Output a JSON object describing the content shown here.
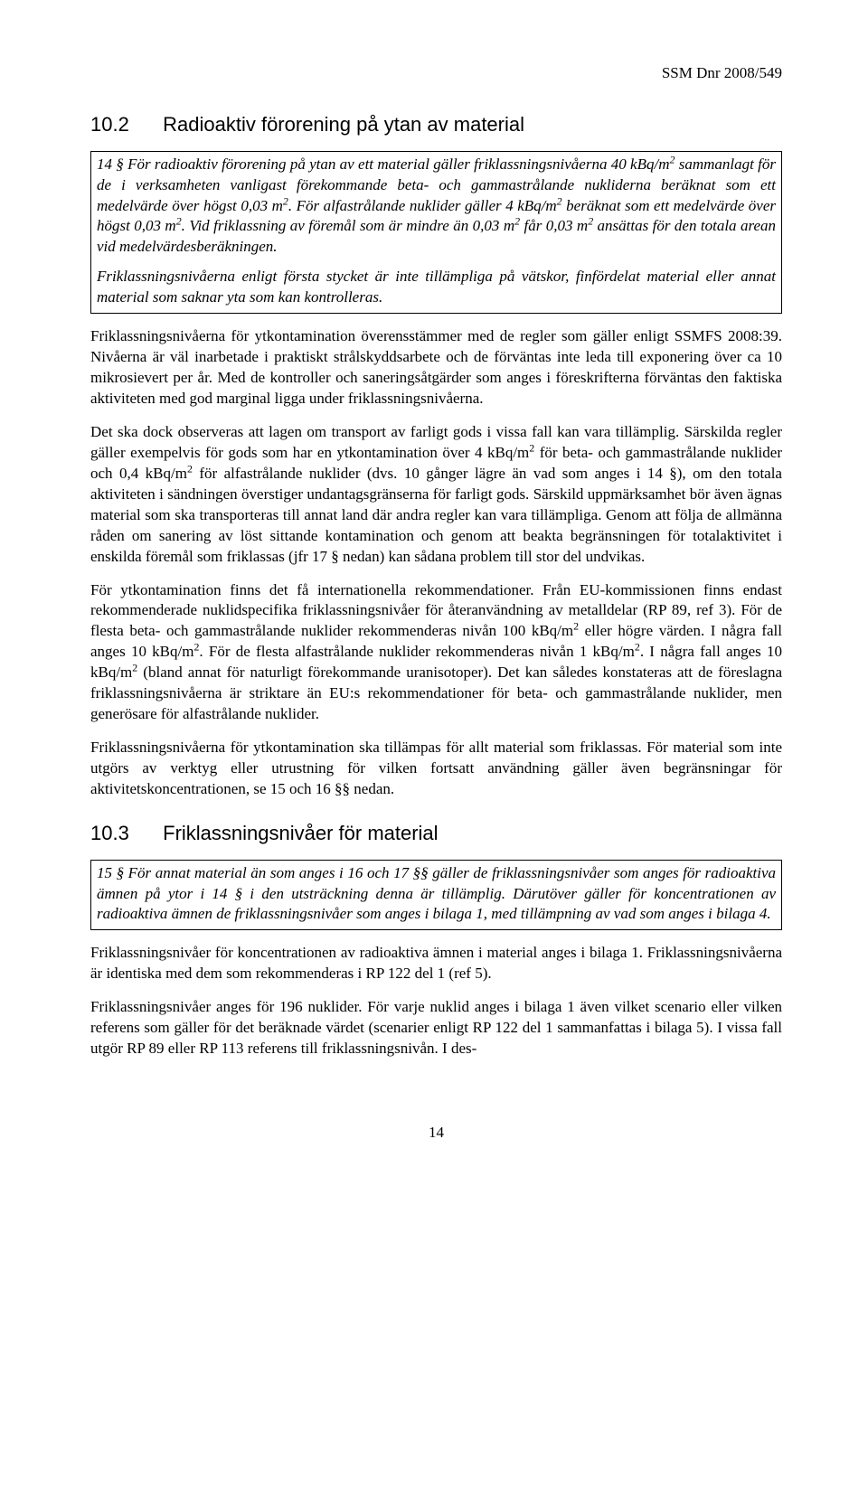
{
  "header": {
    "doc_ref": "SSM Dnr 2008/549"
  },
  "section_10_2": {
    "number": "10.2",
    "title": "Radioaktiv förorening på ytan av material",
    "box": {
      "p1_html": "14 § För radioaktiv förorening på ytan av ett material gäller friklassningsnivåerna 40 kBq/m<sup>2</sup> sammanlagt för de i verksamheten vanligast förekommande beta- och gammastrålande nukliderna beräknat som ett medelvärde över högst 0,03 m<sup>2</sup>. För alfastrålande nuklider gäller 4 kBq/m<sup>2</sup> beräknat som ett medelvärde över högst 0,03 m<sup>2</sup>. Vid friklassning av föremål som är mindre än 0,03 m<sup>2</sup> får 0,03 m<sup>2</sup> ansättas för den totala arean vid medelvärdesberäkningen.",
      "p2_html": "Friklassningsnivåerna enligt första stycket är inte tillämpliga på vätskor, finfördelat material eller annat material som saknar yta som kan kontrolleras."
    },
    "paragraphs": {
      "p1": "Friklassningsnivåerna för ytkontamination överensstämmer med de regler som gäller enligt SSMFS 2008:39. Nivåerna är väl inarbetade i praktiskt strålskyddsarbete och de förväntas inte leda till exponering över ca 10 mikrosievert per år. Med de kontroller och saneringsåtgärder som anges i föreskrifterna förväntas den faktiska aktiviteten med god marginal ligga under friklassningsnivåerna.",
      "p2_html": "Det ska dock observeras att lagen om transport av farligt gods i vissa fall kan vara tillämplig. Särskilda regler gäller exempelvis för gods som har en ytkontamination över 4 kBq/m<sup>2</sup> för beta- och gammastrålande nuklider och 0,4 kBq/m<sup>2</sup> för alfastrålande nuklider (dvs. 10 gånger lägre än vad som anges i 14 §), om den totala aktiviteten i sändningen överstiger undantagsgränserna för farligt gods. Särskild uppmärksamhet bör även ägnas material som ska transporteras till annat land där andra regler kan vara tillämpliga. Genom att följa de allmänna råden om sanering av löst sittande kontamination och genom att beakta begränsningen för totalaktivitet i enskilda föremål som friklassas (jfr 17 § nedan) kan sådana problem till stor del undvikas.",
      "p3_html": "För ytkontamination finns det få internationella rekommendationer. Från EU-kommissionen finns endast rekommenderade nuklidspecifika friklassningsnivåer för återanvändning av metalldelar (RP 89, ref 3). För de flesta beta- och gammastrålande nuklider rekommenderas nivån 100 kBq/m<sup>2</sup> eller högre värden. I några fall anges 10 kBq/m<sup>2</sup>. För de flesta alfastrålande nuklider rekommenderas nivån 1 kBq/m<sup>2</sup>. I några fall anges 10 kBq/m<sup>2</sup> (bland annat för naturligt förekommande uranisotoper). Det kan således konstateras att de föreslagna friklassningsnivåerna är striktare än EU:s rekommendationer för beta- och gammastrålande nuklider, men generösare för alfastrålande nuklider.",
      "p4": "Friklassningsnivåerna för ytkontamination ska tillämpas för allt material som friklassas. För material som inte utgörs av verktyg eller utrustning för vilken fortsatt användning gäller även begränsningar för aktivitetskoncentrationen, se 15 och 16 §§ nedan."
    }
  },
  "section_10_3": {
    "number": "10.3",
    "title": "Friklassningsnivåer för material",
    "box": {
      "p1_html": "15 § För annat material än som anges i 16 och 17 §§ gäller de friklassningsnivåer som anges för radioaktiva ämnen på ytor i 14 § i den utsträckning denna är tillämplig. Därutöver gäller för koncentrationen av radioaktiva ämnen de friklassningsnivåer som anges i bilaga 1, med tillämpning av vad som anges i bilaga 4."
    },
    "paragraphs": {
      "p1": "Friklassningsnivåer för koncentrationen av radioaktiva ämnen i material anges i bilaga 1. Friklassningsnivåerna är identiska med dem som rekommenderas i RP 122 del 1 (ref 5).",
      "p2": "Friklassningsnivåer anges för 196 nuklider. För varje nuklid anges i bilaga 1 även vilket scenario eller vilken referens som gäller för det beräknade värdet (scenarier enligt RP 122 del 1 sammanfattas i bilaga 5). I vissa fall utgör RP 89 eller RP 113 referens till friklassningsnivån. I des-"
    }
  },
  "page_number": "14"
}
